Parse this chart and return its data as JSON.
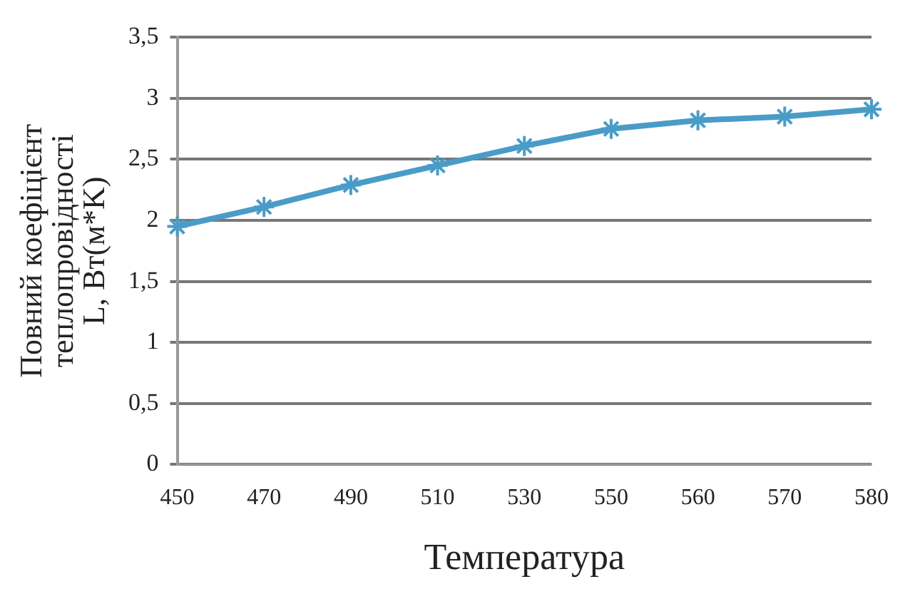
{
  "chart_data": {
    "type": "line",
    "xlabel": "Температура",
    "ylabel": "Повний коефіцієнт теплопровідності L, Вт(м*K)",
    "categories": [
      "450",
      "470",
      "490",
      "510",
      "530",
      "550",
      "560",
      "570",
      "580"
    ],
    "series": [
      {
        "color": "#4a9cc8",
        "values": [
          1.95,
          2.11,
          2.29,
          2.45,
          2.61,
          2.75,
          2.82,
          2.85,
          2.91
        ]
      }
    ],
    "ylim": [
      0,
      3.5
    ],
    "yticks": [
      0,
      {
        "value": 0.5,
        "label": "0,5"
      },
      1,
      {
        "value": 1.5,
        "label": "1,5"
      },
      2,
      {
        "value": 2.5,
        "label": "2,5"
      },
      3,
      {
        "value": 3.5,
        "label": "3,5"
      }
    ],
    "grid": "y",
    "legend": false,
    "marker": "cross",
    "line_style": "solid"
  }
}
